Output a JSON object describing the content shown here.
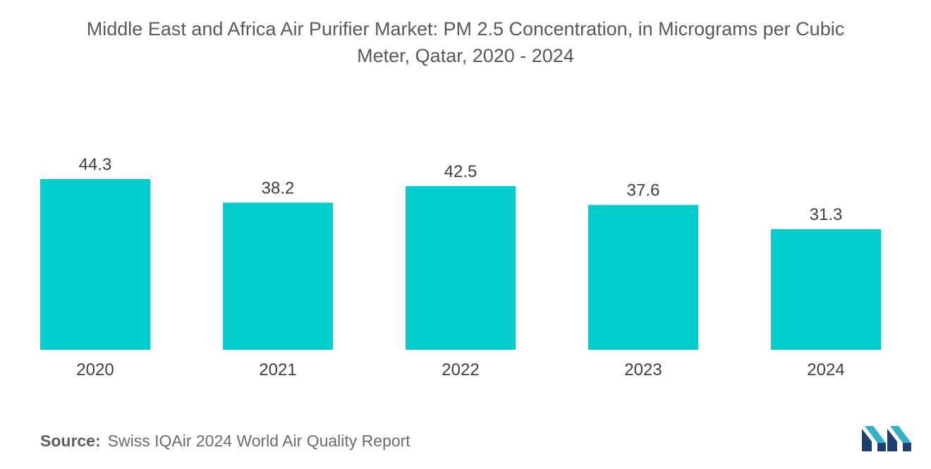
{
  "title": {
    "line1": "Middle East and Africa Air Purifier Market: PM 2.5 Concentration, in Micrograms per Cubic",
    "line2": "Meter, Qatar, 2020 - 2024"
  },
  "chart_data": {
    "type": "bar",
    "categories": [
      "2020",
      "2021",
      "2022",
      "2023",
      "2024"
    ],
    "values": [
      44.3,
      38.2,
      42.5,
      37.6,
      31.3
    ],
    "value_labels": [
      "44.3",
      "38.2",
      "42.5",
      "37.6",
      "31.3"
    ],
    "xlabel": "",
    "ylabel": "",
    "ylim": [
      0,
      44.3
    ],
    "grid": false,
    "legend": "none",
    "bar_color": "#00CCCC"
  },
  "source": {
    "label": "Source:",
    "text": "Swiss IQAir 2024 World Air Quality Report"
  },
  "logo": {
    "icon": "mordor-intelligence-logo",
    "colors": [
      "#1f3f6e",
      "#2fb3c5"
    ]
  }
}
